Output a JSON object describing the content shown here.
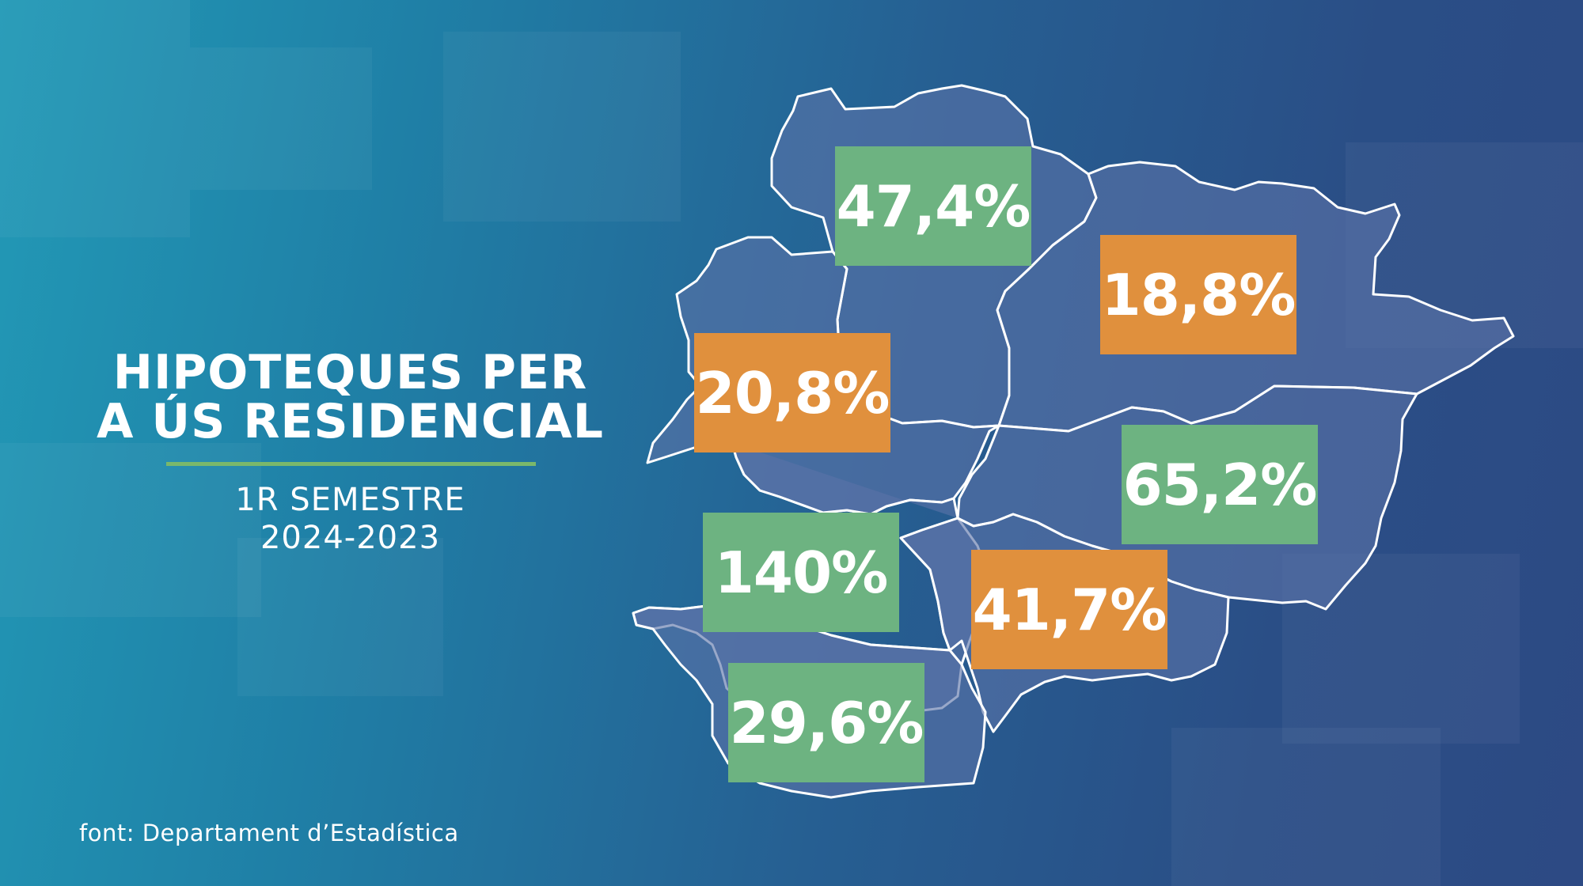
{
  "title": {
    "line1": "HIPOTEQUES PER",
    "line2": "A ÚS RESIDENCIAL"
  },
  "subtitle": {
    "line1": "1R SEMESTRE",
    "line2": "2024-2023"
  },
  "source": "font: Departament d’Estadística",
  "colors": {
    "increase_low": "#e0903d",
    "increase_high": "#6db381",
    "divider": "#7ab86b",
    "map_fill": "#5a73a8"
  },
  "regions": [
    {
      "value": "47,4%",
      "color_class": "green"
    },
    {
      "value": "18,8%",
      "color_class": "orange"
    },
    {
      "value": "20,8%",
      "color_class": "orange"
    },
    {
      "value": "65,2%",
      "color_class": "green"
    },
    {
      "value": "140%",
      "color_class": "green"
    },
    {
      "value": "41,7%",
      "color_class": "orange"
    },
    {
      "value": "29,6%",
      "color_class": "green"
    }
  ]
}
